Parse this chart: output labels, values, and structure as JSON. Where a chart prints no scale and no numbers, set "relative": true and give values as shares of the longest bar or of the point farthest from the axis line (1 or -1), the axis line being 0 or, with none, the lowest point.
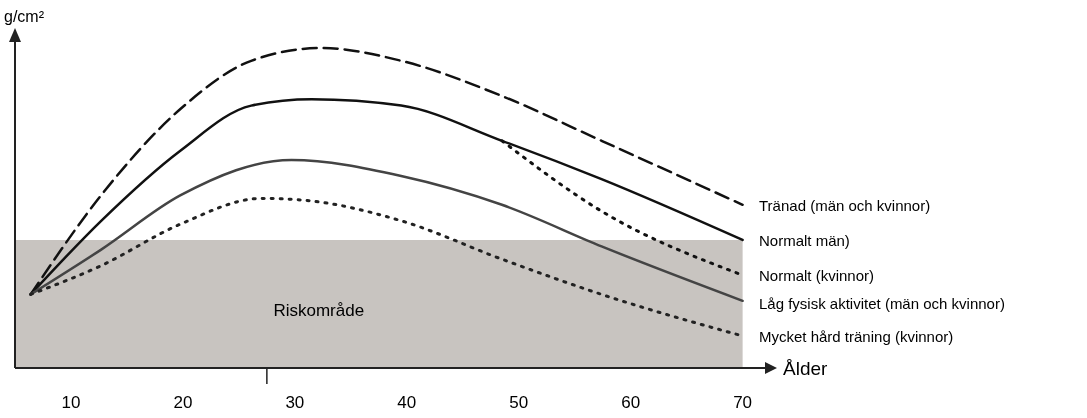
{
  "chart_data": {
    "type": "line",
    "relative": true,
    "ylabel": "g/cm²",
    "xlabel": "Ålder",
    "xlim": [
      5,
      72
    ],
    "xticks": [
      10,
      20,
      30,
      40,
      50,
      60,
      70,
      {
        "value": 27.5,
        "label": null
      }
    ],
    "legend": false,
    "marker": "none",
    "grid": false,
    "bands": [
      {
        "axis": "y",
        "from": 0,
        "to": 0.4,
        "label": "Riskområde",
        "color": "#c8c4c0"
      }
    ],
    "series": [
      {
        "name": "Tränad (män och kvinnor)",
        "color": "#111111",
        "line_style": "dashed",
        "x": [
          6.4,
          12.7,
          19.8,
          26.1,
          32.4,
          39.5,
          48.5,
          57.4,
          70
        ],
        "values": [
          0.23,
          0.54,
          0.81,
          0.96,
          1,
          0.96,
          0.85,
          0.71,
          0.51
        ]
      },
      {
        "name": "Normalt  män)",
        "color": "#111111",
        "line_style": "solid",
        "x": [
          6.4,
          12.7,
          19.8,
          26.1,
          31.5,
          39.5,
          48.5,
          57.4,
          70
        ],
        "values": [
          0.23,
          0.46,
          0.68,
          0.82,
          0.84,
          0.82,
          0.71,
          0.59,
          0.4
        ]
      },
      {
        "name": "Normalt (kvinnor)",
        "color": "#111111",
        "line_style": "dotted",
        "x": [
          48.5,
          57.4,
          70
        ],
        "values": [
          0.71,
          0.49,
          0.29
        ]
      },
      {
        "name": "Låg fysisk aktivitet (män och kvinnor)",
        "color": "#444444",
        "line_style": "solid",
        "x": [
          6.4,
          12.7,
          19.8,
          29.7,
          39.5,
          48.5,
          57.4,
          70
        ],
        "values": [
          0.23,
          0.37,
          0.54,
          0.65,
          0.6,
          0.51,
          0.38,
          0.21
        ]
      },
      {
        "name": "Mycket hård träning (kvinnor)",
        "color": "#222222",
        "line_style": "dotted",
        "x": [
          6.4,
          12.7,
          19.8,
          27,
          30.6,
          39.5,
          48.5,
          57.4,
          70
        ],
        "values": [
          0.23,
          0.32,
          0.45,
          0.53,
          0.525,
          0.46,
          0.34,
          0.23,
          0.1
        ]
      }
    ]
  }
}
